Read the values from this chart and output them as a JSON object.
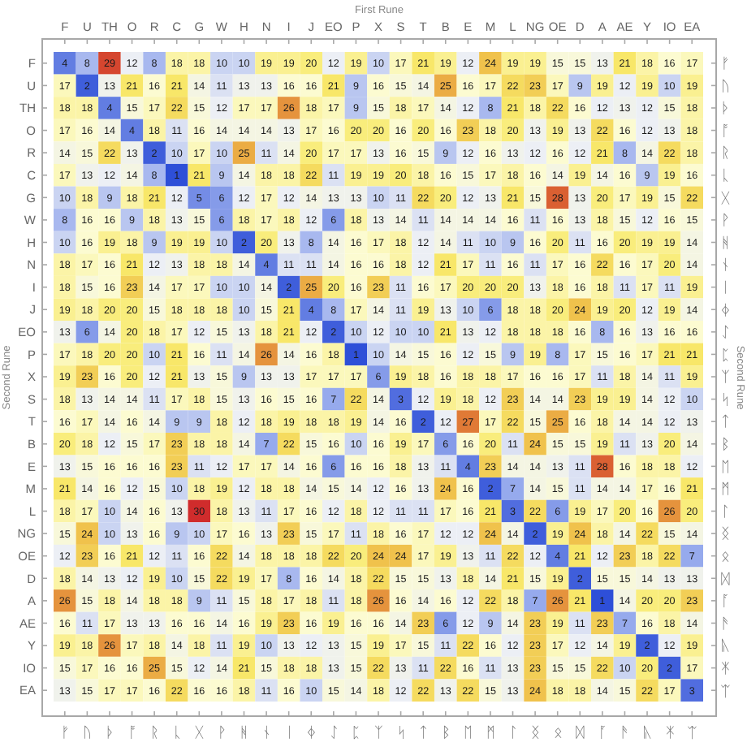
{
  "chart_data": {
    "type": "heatmap",
    "xlabel": "First Rune",
    "ylabel": "Second Rune",
    "y2label": "Second Rune",
    "categories": [
      "F",
      "U",
      "TH",
      "O",
      "R",
      "C",
      "G",
      "W",
      "H",
      "N",
      "I",
      "J",
      "EO",
      "P",
      "X",
      "S",
      "T",
      "B",
      "E",
      "M",
      "L",
      "NG",
      "OE",
      "D",
      "A",
      "AE",
      "Y",
      "IO",
      "EA"
    ],
    "y_categories": [
      "F",
      "U",
      "TH",
      "O",
      "R",
      "C",
      "G",
      "W",
      "H",
      "N",
      "I",
      "J",
      "EO",
      "P",
      "X",
      "S",
      "T",
      "B",
      "E",
      "M",
      "L",
      "NG",
      "OE",
      "D",
      "A",
      "AE",
      "Y",
      "IO",
      "EA"
    ],
    "y2_categories": [
      "ᚠ",
      "ᚢ",
      "ᚦ",
      "ᚩ",
      "ᚱ",
      "ᚳ",
      "ᚷ",
      "ᚹ",
      "ᚻ",
      "ᚾ",
      "ᛁ",
      "ᛄ",
      "ᛇ",
      "ᛈ",
      "ᛉ",
      "ᛋ",
      "ᛏ",
      "ᛒ",
      "ᛖ",
      "ᛗ",
      "ᛚ",
      "ᛝ",
      "ᛟ",
      "ᛞ",
      "ᚪ",
      "ᚫ",
      "ᚣ",
      "ᛡ",
      "ᛠ"
    ],
    "annotations": [
      "ᚠ",
      "ᚢ",
      "ᚦ",
      "ᚩ",
      "ᚱ",
      "ᚳ",
      "ᚷ",
      "ᚹ",
      "ᚻ",
      "ᚾ",
      "ᛁ",
      "ᛄ",
      "ᛇ",
      "ᛈ",
      "ᛉ",
      "ᛋ",
      "ᛏ",
      "ᛒ",
      "ᛖ",
      "ᛗ",
      "ᛚ",
      "ᛝ",
      "ᛟ",
      "ᛞ",
      "ᚪ",
      "ᚫ",
      "ᚣ",
      "ᛡ",
      "ᛠ"
    ],
    "cells": [
      [
        4,
        8,
        29,
        12,
        8,
        18,
        18,
        10,
        10,
        19,
        19,
        20,
        12,
        19,
        10,
        17,
        21,
        19,
        12,
        24,
        19,
        19,
        15,
        15,
        13,
        21,
        18,
        16,
        17
      ],
      [
        17,
        2,
        13,
        21,
        16,
        21,
        14,
        11,
        13,
        13,
        16,
        16,
        21,
        9,
        16,
        15,
        14,
        25,
        16,
        17,
        22,
        23,
        17,
        9,
        19,
        12,
        19,
        10,
        19
      ],
      [
        18,
        18,
        4,
        15,
        17,
        22,
        15,
        12,
        17,
        17,
        26,
        18,
        17,
        9,
        15,
        18,
        17,
        14,
        12,
        8,
        21,
        18,
        22,
        16,
        12,
        13,
        12,
        15,
        18
      ],
      [
        17,
        16,
        14,
        4,
        18,
        11,
        16,
        14,
        14,
        14,
        13,
        17,
        16,
        20,
        20,
        16,
        20,
        16,
        23,
        18,
        20,
        13,
        19,
        13,
        22,
        16,
        12,
        13,
        18
      ],
      [
        14,
        15,
        22,
        13,
        2,
        10,
        17,
        10,
        25,
        11,
        14,
        20,
        17,
        17,
        13,
        16,
        15,
        9,
        12,
        16,
        13,
        12,
        16,
        12,
        21,
        8,
        14,
        22,
        18
      ],
      [
        17,
        13,
        12,
        14,
        8,
        1,
        21,
        9,
        14,
        18,
        18,
        22,
        11,
        19,
        19,
        20,
        18,
        16,
        15,
        17,
        18,
        16,
        14,
        19,
        14,
        16,
        9,
        19,
        16
      ],
      [
        10,
        18,
        9,
        18,
        21,
        12,
        5,
        6,
        12,
        17,
        12,
        14,
        13,
        13,
        10,
        11,
        22,
        20,
        12,
        13,
        21,
        15,
        28,
        13,
        20,
        17,
        19,
        15,
        22
      ],
      [
        8,
        16,
        16,
        9,
        18,
        13,
        15,
        6,
        18,
        17,
        18,
        12,
        6,
        18,
        13,
        14,
        11,
        14,
        14,
        14,
        16,
        11,
        16,
        13,
        18,
        15,
        12,
        16,
        15
      ],
      [
        10,
        16,
        19,
        18,
        9,
        19,
        19,
        10,
        2,
        20,
        13,
        8,
        14,
        16,
        17,
        18,
        12,
        14,
        11,
        10,
        9,
        16,
        20,
        11,
        16,
        20,
        19,
        19,
        14
      ],
      [
        18,
        17,
        16,
        21,
        12,
        13,
        18,
        18,
        14,
        4,
        11,
        11,
        14,
        16,
        16,
        18,
        12,
        21,
        17,
        11,
        16,
        11,
        17,
        16,
        22,
        16,
        17,
        20,
        14
      ],
      [
        18,
        15,
        16,
        23,
        14,
        17,
        17,
        10,
        10,
        14,
        2,
        25,
        20,
        16,
        23,
        11,
        16,
        17,
        20,
        20,
        20,
        13,
        18,
        16,
        18,
        11,
        17,
        11,
        19
      ],
      [
        19,
        18,
        20,
        20,
        15,
        18,
        18,
        18,
        10,
        15,
        21,
        4,
        8,
        17,
        14,
        11,
        19,
        13,
        10,
        6,
        18,
        18,
        20,
        24,
        19,
        20,
        12,
        19,
        14
      ],
      [
        13,
        6,
        14,
        20,
        18,
        17,
        12,
        15,
        13,
        18,
        21,
        12,
        2,
        10,
        12,
        10,
        10,
        21,
        13,
        12,
        18,
        18,
        18,
        16,
        8,
        16,
        13,
        16,
        16
      ],
      [
        17,
        18,
        20,
        20,
        10,
        21,
        16,
        11,
        14,
        26,
        14,
        16,
        18,
        1,
        10,
        14,
        15,
        16,
        12,
        15,
        9,
        19,
        8,
        17,
        15,
        16,
        17,
        21,
        21
      ],
      [
        19,
        23,
        16,
        20,
        12,
        21,
        13,
        15,
        9,
        13,
        13,
        17,
        17,
        17,
        6,
        19,
        18,
        16,
        18,
        18,
        17,
        16,
        16,
        17,
        11,
        18,
        14,
        11,
        19
      ],
      [
        18,
        13,
        14,
        14,
        11,
        17,
        18,
        15,
        13,
        16,
        15,
        16,
        7,
        22,
        14,
        3,
        12,
        19,
        18,
        12,
        23,
        14,
        14,
        23,
        19,
        19,
        14,
        12,
        10
      ],
      [
        16,
        17,
        14,
        16,
        14,
        9,
        9,
        18,
        12,
        18,
        19,
        18,
        18,
        19,
        14,
        16,
        2,
        12,
        27,
        17,
        22,
        15,
        25,
        16,
        18,
        14,
        14,
        12,
        13
      ],
      [
        20,
        18,
        12,
        15,
        17,
        23,
        18,
        18,
        14,
        7,
        22,
        15,
        16,
        10,
        16,
        19,
        17,
        6,
        16,
        20,
        11,
        24,
        15,
        15,
        19,
        11,
        13,
        20,
        14
      ],
      [
        13,
        15,
        16,
        16,
        16,
        23,
        11,
        12,
        17,
        17,
        14,
        16,
        6,
        16,
        16,
        18,
        13,
        11,
        4,
        23,
        14,
        14,
        13,
        11,
        28,
        16,
        18,
        18,
        12
      ],
      [
        21,
        14,
        16,
        12,
        15,
        10,
        18,
        19,
        12,
        18,
        18,
        14,
        15,
        14,
        12,
        16,
        13,
        24,
        16,
        2,
        7,
        14,
        15,
        11,
        14,
        14,
        17,
        16,
        21
      ],
      [
        18,
        17,
        10,
        14,
        16,
        13,
        30,
        18,
        13,
        11,
        17,
        16,
        12,
        18,
        12,
        11,
        11,
        17,
        16,
        21,
        3,
        22,
        6,
        19,
        17,
        20,
        16,
        26,
        20
      ],
      [
        15,
        24,
        10,
        13,
        16,
        9,
        10,
        17,
        16,
        13,
        23,
        15,
        17,
        11,
        18,
        16,
        17,
        12,
        12,
        24,
        14,
        2,
        19,
        24,
        18,
        14,
        22,
        15,
        14
      ],
      [
        12,
        23,
        16,
        21,
        12,
        11,
        16,
        22,
        14,
        18,
        18,
        18,
        22,
        20,
        24,
        24,
        17,
        19,
        13,
        11,
        22,
        12,
        4,
        21,
        12,
        23,
        18,
        22,
        7
      ],
      [
        18,
        14,
        13,
        12,
        19,
        10,
        15,
        22,
        19,
        17,
        8,
        16,
        14,
        18,
        22,
        15,
        15,
        13,
        18,
        14,
        21,
        15,
        19,
        2,
        15,
        15,
        14,
        13,
        13
      ],
      [
        26,
        15,
        18,
        14,
        18,
        18,
        9,
        11,
        15,
        18,
        17,
        18,
        11,
        18,
        26,
        16,
        14,
        16,
        12,
        22,
        18,
        7,
        26,
        21,
        1,
        14,
        20,
        20,
        23
      ],
      [
        16,
        11,
        17,
        13,
        13,
        16,
        16,
        14,
        16,
        19,
        23,
        16,
        19,
        16,
        16,
        14,
        23,
        6,
        12,
        9,
        14,
        23,
        19,
        11,
        23,
        7,
        16,
        18,
        14
      ],
      [
        19,
        18,
        26,
        17,
        18,
        14,
        18,
        11,
        19,
        10,
        13,
        12,
        13,
        15,
        19,
        17,
        15,
        11,
        22,
        16,
        12,
        23,
        17,
        12,
        14,
        19,
        2,
        12,
        19
      ],
      [
        15,
        17,
        16,
        16,
        25,
        15,
        12,
        14,
        21,
        15,
        18,
        18,
        13,
        15,
        22,
        13,
        11,
        22,
        16,
        11,
        13,
        23,
        15,
        15,
        22,
        10,
        20,
        2,
        17
      ],
      [
        13,
        15,
        17,
        17,
        16,
        22,
        16,
        16,
        18,
        11,
        16,
        10,
        15,
        14,
        18,
        12,
        22,
        13,
        22,
        15,
        13,
        24,
        18,
        18,
        14,
        15,
        22,
        17,
        3
      ]
    ],
    "data_labels": true
  }
}
